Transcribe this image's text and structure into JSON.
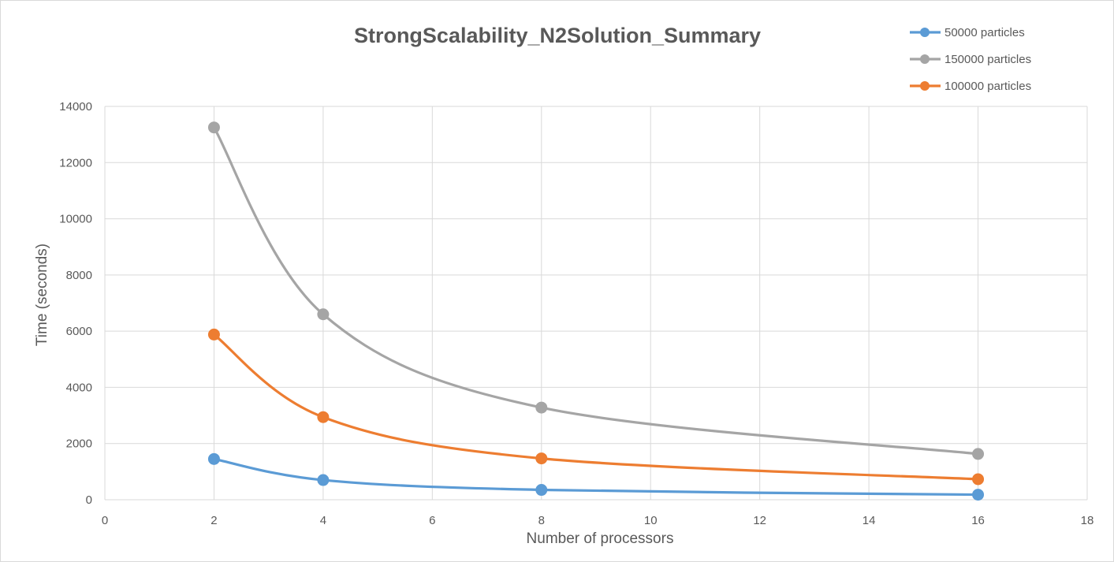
{
  "chart_data": {
    "type": "scatter",
    "title": "StrongScalability_N2Solution_Summary",
    "xlabel": "Number of processors",
    "ylabel": "Time (seconds)",
    "xlim": [
      0,
      18
    ],
    "ylim": [
      0,
      14000
    ],
    "x_ticks": [
      "0",
      "2",
      "4",
      "6",
      "8",
      "10",
      "12",
      "14",
      "16",
      "18"
    ],
    "y_ticks": [
      "0",
      "2000",
      "4000",
      "6000",
      "8000",
      "10000",
      "12000",
      "14000"
    ],
    "grid": true,
    "smooth_lines": true,
    "legend_position": "top-right",
    "series": [
      {
        "name": "50000 particles",
        "color": "#5b9bd5",
        "x": [
          2,
          4,
          8,
          16
        ],
        "y": [
          1450,
          700,
          350,
          180
        ]
      },
      {
        "name": "150000 particles",
        "color": "#a5a5a5",
        "x": [
          2,
          4,
          8,
          16
        ],
        "y": [
          13250,
          6600,
          3280,
          1630
        ]
      },
      {
        "name": "100000 particles",
        "color": "#ed7d31",
        "x": [
          2,
          4,
          8,
          16
        ],
        "y": [
          5880,
          2940,
          1470,
          730
        ]
      }
    ]
  }
}
